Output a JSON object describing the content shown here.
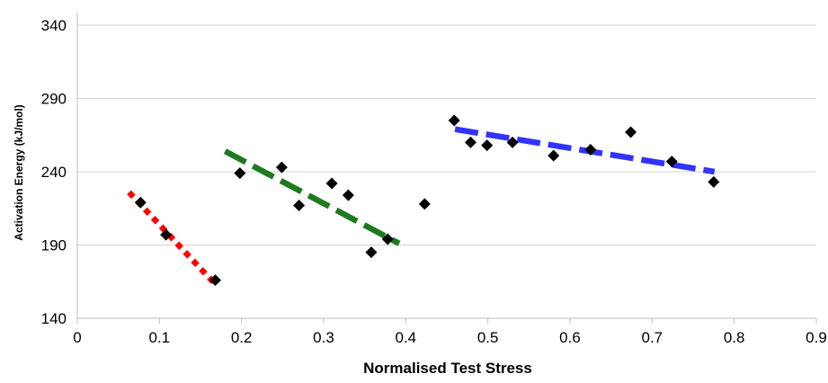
{
  "chart_data": {
    "type": "scatter",
    "xlabel": "Normalised Test Stress",
    "ylabel": "Activation Energy (kJ/mol)",
    "xlim": [
      0,
      0.9
    ],
    "ylim": [
      140,
      340
    ],
    "x_ticks": [
      0,
      0.1,
      0.2,
      0.3,
      0.4,
      0.5,
      0.6,
      0.7,
      0.8,
      0.9
    ],
    "x_tick_labels": [
      "0",
      "0.1",
      "0.2",
      "0.3",
      "0.4",
      "0.5",
      "0.6",
      "0.7",
      "0.8",
      "0.9"
    ],
    "y_ticks": [
      140,
      190,
      240,
      290,
      340
    ],
    "y_tick_labels": [
      "140",
      "190",
      "240",
      "290",
      "340"
    ],
    "grid": "horizontal",
    "series": [
      {
        "type": "scatter",
        "marker": "diamond",
        "color": "#000000",
        "x": [
          0.077,
          0.108,
          0.168,
          0.198,
          0.249,
          0.27,
          0.31,
          0.33,
          0.358,
          0.378,
          0.423,
          0.459,
          0.479,
          0.499,
          0.53,
          0.58,
          0.625,
          0.674,
          0.724,
          0.775
        ],
        "y": [
          219,
          197,
          166,
          239,
          243,
          217,
          232,
          224,
          185,
          194,
          218,
          275,
          260,
          258,
          260,
          251,
          255,
          267,
          247,
          233
        ]
      },
      {
        "type": "trendline",
        "style": "dotted",
        "color": "#ff0000",
        "x": [
          0.063,
          0.17
        ],
        "y": [
          226,
          162
        ]
      },
      {
        "type": "trendline",
        "style": "dashed",
        "color": "#1e7a1e",
        "x": [
          0.18,
          0.392
        ],
        "y": [
          254,
          191
        ]
      },
      {
        "type": "trendline",
        "style": "dashed",
        "color": "#3333ff",
        "x": [
          0.46,
          0.776
        ],
        "y": [
          269,
          240
        ]
      }
    ]
  }
}
